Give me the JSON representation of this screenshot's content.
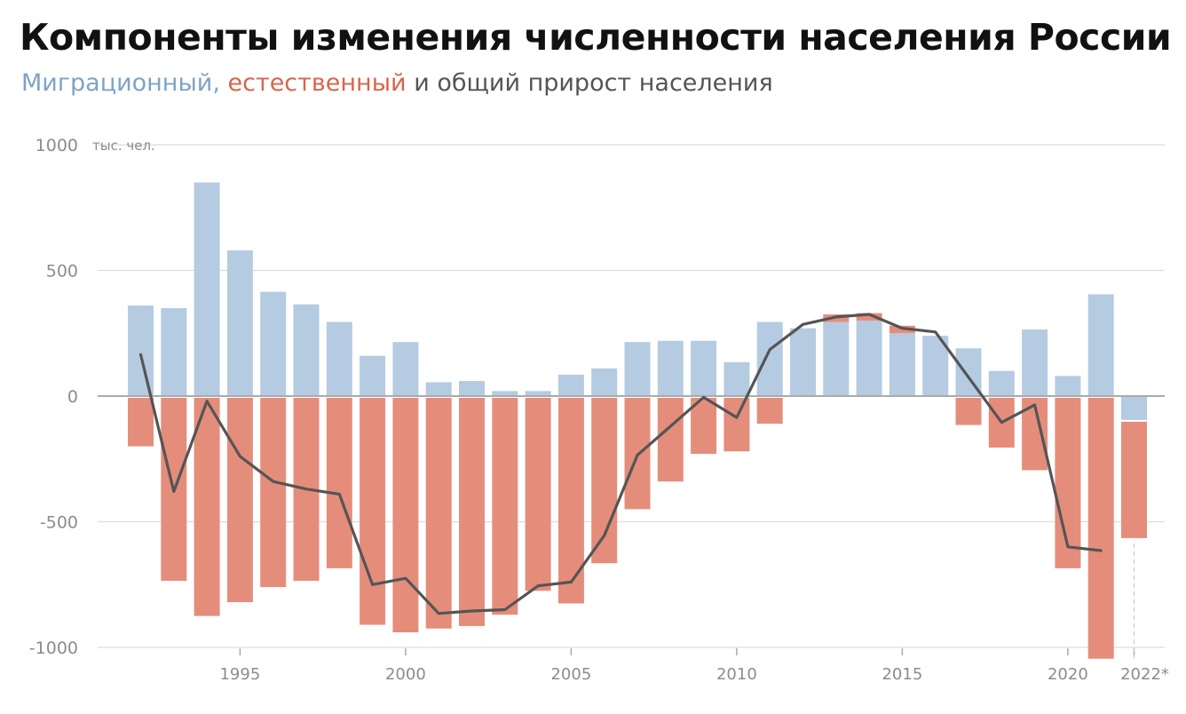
{
  "title": "Компоненты изменения численности населения России",
  "subtitle": {
    "migration": "Миграционный,",
    "natural": "естественный",
    "rest": "и общий прирост населения"
  },
  "colors": {
    "migration": "#b5cbe2",
    "natural": "#e58d7b",
    "total": "#555555",
    "grid": "#dddddd",
    "axis": "#aaaaaa"
  },
  "chart_data": {
    "type": "bar",
    "subtype": "stacked-diverging-with-line",
    "ylim": [
      -1000,
      1000
    ],
    "y_unit": "тыс. чел.",
    "y_ticks": [
      {
        "value": 1000,
        "label": "1000"
      },
      {
        "value": 500,
        "label": "500"
      },
      {
        "value": 0,
        "label": "0"
      },
      {
        "value": -500,
        "label": "-500"
      },
      {
        "value": -1000,
        "label": "-1000"
      }
    ],
    "x_ticks": [
      {
        "year": 1995,
        "label": "1995"
      },
      {
        "year": 2000,
        "label": "2000"
      },
      {
        "year": 2005,
        "label": "2005"
      },
      {
        "year": 2010,
        "label": "2010"
      },
      {
        "year": 2015,
        "label": "2015"
      },
      {
        "year": 2020,
        "label": "2020"
      },
      {
        "year": 2022,
        "label": "2022*"
      }
    ],
    "years": [
      1992,
      1993,
      1994,
      1995,
      1996,
      1997,
      1998,
      1999,
      2000,
      2001,
      2002,
      2003,
      2004,
      2005,
      2006,
      2007,
      2008,
      2009,
      2010,
      2011,
      2012,
      2013,
      2014,
      2015,
      2016,
      2017,
      2018,
      2019,
      2020,
      2021,
      2022
    ],
    "series": [
      {
        "key": "migration",
        "values": [
          360,
          350,
          850,
          580,
          415,
          365,
          295,
          160,
          215,
          55,
          60,
          20,
          20,
          85,
          110,
          215,
          220,
          220,
          135,
          295,
          270,
          295,
          300,
          250,
          240,
          190,
          100,
          265,
          80,
          405,
          -95
        ]
      },
      {
        "key": "natural",
        "values": [
          -200,
          -735,
          -875,
          -820,
          -760,
          -735,
          -685,
          -910,
          -940,
          -925,
          -915,
          -870,
          -775,
          -825,
          -665,
          -450,
          -340,
          -230,
          -220,
          -110,
          0,
          30,
          30,
          30,
          -5,
          -115,
          -205,
          -295,
          -685,
          -1045,
          -470
        ]
      },
      {
        "key": "total",
        "type": "line",
        "values": [
          165,
          -380,
          -20,
          -240,
          -340,
          -370,
          -390,
          -750,
          -725,
          -865,
          -855,
          -850,
          -755,
          -740,
          -555,
          -235,
          -120,
          -5,
          -85,
          185,
          285,
          315,
          325,
          270,
          255,
          75,
          -105,
          -35,
          -600,
          -615,
          null
        ]
      }
    ]
  }
}
